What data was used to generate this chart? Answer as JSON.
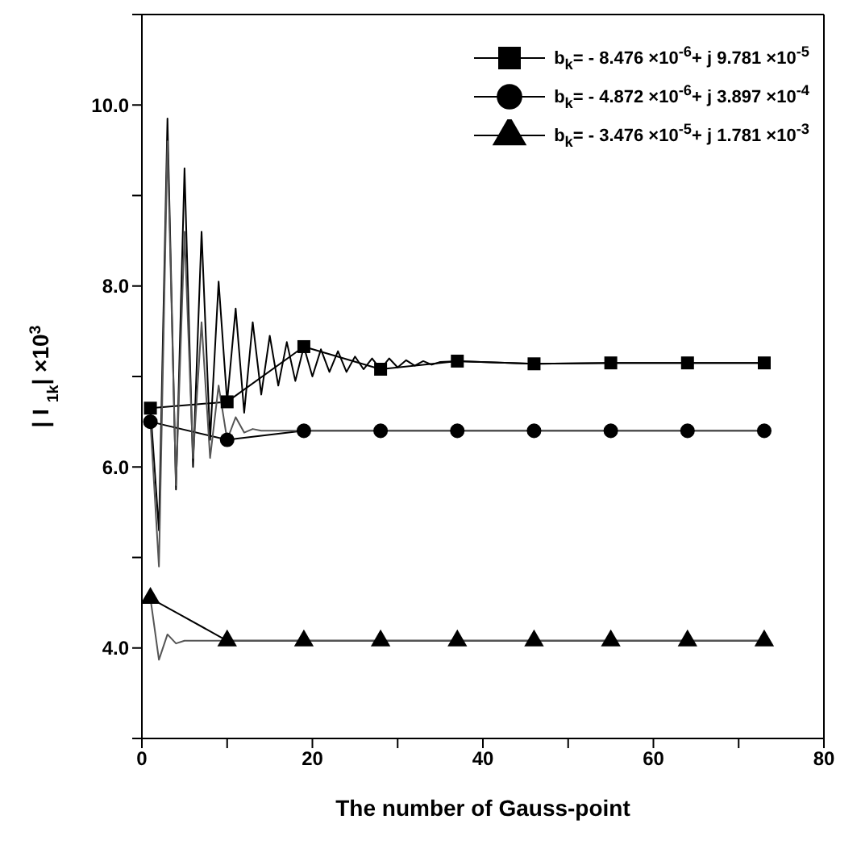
{
  "chart_data": {
    "type": "line",
    "xlabel": "The number of Gauss-point",
    "ylabel": "| I $_{1k}$| ×10$^{3}$",
    "xlim": [
      0,
      80
    ],
    "ylim": [
      3,
      11
    ],
    "xticks": [
      0,
      {
        "value": 10,
        "label": null
      },
      20,
      {
        "value": 30,
        "label": null
      },
      40,
      {
        "value": 50,
        "label": null
      },
      60,
      {
        "value": 70,
        "label": null
      },
      80
    ],
    "yticks": [
      {
        "value": 3,
        "label": null
      },
      {
        "value": 4,
        "label": "4.0"
      },
      {
        "value": 5,
        "label": null
      },
      {
        "value": 6,
        "label": "6.0"
      },
      {
        "value": 7,
        "label": null
      },
      {
        "value": 8,
        "label": "8.0"
      },
      {
        "value": 9,
        "label": null
      },
      {
        "value": 10,
        "label": "10.0"
      },
      {
        "value": 11,
        "label": null
      }
    ],
    "legend": "top right",
    "series": [
      {
        "name": "b$_{k}$= - 8.476 ×10$^{-6}$+ j 9.781 ×10$^{-5}$",
        "color": "#000000",
        "marker": "square",
        "x": [
          1,
          10,
          19,
          28,
          37,
          46,
          55,
          64,
          73
        ],
        "values": [
          6.65,
          6.72,
          7.33,
          7.08,
          7.17,
          7.14,
          7.15,
          7.15,
          7.15
        ]
      },
      {
        "name": "b$_{k}$= - 4.872 ×10$^{-6}$+ j 3.897 ×10$^{-4}$",
        "color": "#000000",
        "marker": "circle",
        "x": [
          1,
          10,
          19,
          28,
          37,
          46,
          55,
          64,
          73
        ],
        "values": [
          6.5,
          6.3,
          6.4,
          6.4,
          6.4,
          6.4,
          6.4,
          6.4,
          6.4
        ]
      },
      {
        "name": "b$_{k}$= - 3.476 ×10$^{-5}$+ j 1.781 ×10$^{-3}$",
        "color": "#000000",
        "marker": "triangle",
        "x": [
          1,
          10,
          19,
          28,
          37,
          46,
          55,
          64,
          73
        ],
        "values": [
          4.55,
          4.08,
          4.08,
          4.08,
          4.08,
          4.08,
          4.08,
          4.08,
          4.08
        ]
      },
      {
        "color": "#000000",
        "marker": "none",
        "x": [
          1,
          2,
          3,
          4,
          5,
          6,
          7,
          8,
          9,
          10,
          11,
          12,
          13,
          14,
          15,
          16,
          17,
          18,
          19,
          20,
          21,
          22,
          23,
          24,
          25,
          26,
          27,
          28,
          29,
          30,
          31,
          32,
          33,
          34,
          35,
          37,
          46,
          55,
          64,
          73
        ],
        "values": [
          6.65,
          5.3,
          9.85,
          5.75,
          9.3,
          6.0,
          8.6,
          6.3,
          8.05,
          6.72,
          7.75,
          6.6,
          7.6,
          6.8,
          7.45,
          6.9,
          7.38,
          6.95,
          7.33,
          7.0,
          7.3,
          7.05,
          7.28,
          7.05,
          7.22,
          7.08,
          7.2,
          7.08,
          7.2,
          7.1,
          7.18,
          7.12,
          7.17,
          7.13,
          7.16,
          7.17,
          7.14,
          7.15,
          7.15,
          7.15
        ]
      },
      {
        "color": "#555555",
        "marker": "none",
        "x": [
          1,
          2,
          3,
          4,
          5,
          6,
          7,
          8,
          9,
          10,
          11,
          12,
          13,
          14,
          19,
          28,
          37,
          46,
          55,
          64,
          73
        ],
        "values": [
          6.5,
          4.9,
          9.6,
          5.8,
          8.6,
          6.1,
          7.6,
          6.1,
          6.9,
          6.3,
          6.55,
          6.38,
          6.42,
          6.4,
          6.4,
          6.4,
          6.4,
          6.4,
          6.4,
          6.4,
          6.4
        ]
      },
      {
        "color": "#555555",
        "marker": "none",
        "x": [
          1,
          2,
          3,
          4,
          5,
          6,
          10,
          19,
          28,
          37,
          46,
          55,
          64,
          73
        ],
        "values": [
          4.55,
          3.87,
          4.15,
          4.05,
          4.08,
          4.08,
          4.08,
          4.08,
          4.08,
          4.08,
          4.08,
          4.08,
          4.08,
          4.08
        ]
      }
    ]
  }
}
